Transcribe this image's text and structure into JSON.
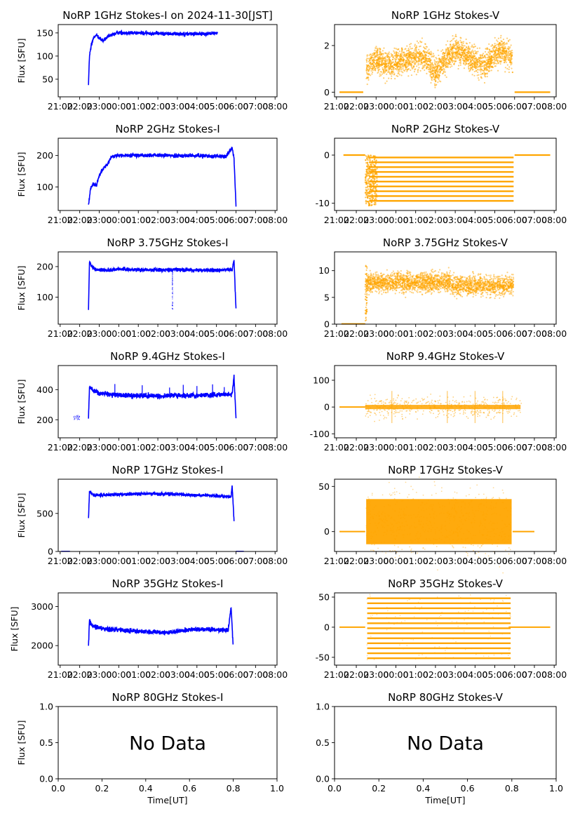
{
  "time_ticks": [
    "21:00",
    "22:00",
    "23:00",
    "00:00",
    "01:00",
    "02:00",
    "03:00",
    "04:00",
    "05:00",
    "06:00",
    "07:00",
    "08:00"
  ],
  "colors": {
    "stokes_i": "#0000ff",
    "stokes_v": "#ffa500"
  },
  "chart_data": [
    {
      "id": "p1i",
      "type": "scatter",
      "title": "NoRP 1GHz Stokes-I on 2024-11-30[JST]",
      "ylabel": "Flux [SFU]",
      "xlabel": "",
      "ylim": [
        12,
        168
      ],
      "yticks": [
        50,
        100,
        150
      ],
      "series": "I",
      "start_h": 22.45,
      "end_h": 29.05,
      "profile": [
        [
          22.45,
          40
        ],
        [
          22.5,
          100
        ],
        [
          22.6,
          125
        ],
        [
          22.75,
          143
        ],
        [
          22.9,
          145
        ],
        [
          23.0,
          138
        ],
        [
          23.2,
          133
        ],
        [
          23.5,
          143
        ],
        [
          23.8,
          148
        ],
        [
          24.0,
          151
        ],
        [
          24.5,
          150
        ],
        [
          25,
          150
        ],
        [
          25.5,
          149
        ],
        [
          26,
          149
        ],
        [
          26.5,
          148
        ],
        [
          27,
          148
        ],
        [
          27.5,
          148
        ],
        [
          28,
          148
        ],
        [
          28.5,
          148
        ],
        [
          29.0,
          150
        ]
      ],
      "noise": 2
    },
    {
      "id": "p1v",
      "type": "scatter",
      "title": "NoRP 1GHz Stokes-V",
      "ylabel": "",
      "xlabel": "",
      "ylim": [
        -0.2,
        2.9
      ],
      "yticks": [
        0,
        2
      ],
      "series": "V",
      "mode": "v1"
    },
    {
      "id": "p2i",
      "type": "scatter",
      "title": "NoRP 2GHz Stokes-I",
      "ylabel": "Flux [SFU]",
      "xlabel": "",
      "ylim": [
        25,
        255
      ],
      "yticks": [
        100,
        200
      ],
      "series": "I",
      "start_h": 22.45,
      "end_h": 30.0,
      "profile": [
        [
          22.45,
          40
        ],
        [
          22.55,
          95
        ],
        [
          22.7,
          110
        ],
        [
          22.85,
          105
        ],
        [
          23.0,
          135
        ],
        [
          23.2,
          160
        ],
        [
          23.4,
          170
        ],
        [
          23.6,
          195
        ],
        [
          23.8,
          198
        ],
        [
          24.2,
          200
        ],
        [
          25,
          201
        ],
        [
          26,
          200
        ],
        [
          27,
          200
        ],
        [
          28,
          199
        ],
        [
          29,
          198
        ],
        [
          29.5,
          197
        ],
        [
          29.8,
          225
        ],
        [
          29.9,
          190
        ],
        [
          30.0,
          40
        ]
      ],
      "noise": 3
    },
    {
      "id": "p2v",
      "type": "scatter",
      "title": "NoRP 2GHz Stokes-V",
      "ylabel": "",
      "xlabel": "",
      "ylim": [
        -11.5,
        3.5
      ],
      "yticks": [
        -10,
        0
      ],
      "series": "V",
      "mode": "v2"
    },
    {
      "id": "p3i",
      "type": "scatter",
      "title": "NoRP 3.75GHz Stokes-I",
      "ylabel": "Flux [SFU]",
      "xlabel": "",
      "ylim": [
        12,
        248
      ],
      "yticks": [
        100,
        200
      ],
      "series": "I",
      "start_h": 22.45,
      "end_h": 30.0,
      "profile": [
        [
          22.45,
          60
        ],
        [
          22.5,
          215
        ],
        [
          22.6,
          200
        ],
        [
          22.8,
          190
        ],
        [
          23.5,
          188
        ],
        [
          24.0,
          193
        ],
        [
          24.5,
          190
        ],
        [
          25,
          190
        ],
        [
          26,
          189
        ],
        [
          27,
          190
        ],
        [
          28,
          188
        ],
        [
          29,
          188
        ],
        [
          29.8,
          190
        ],
        [
          29.9,
          220
        ],
        [
          30.0,
          60
        ]
      ],
      "noise": 3,
      "dip_at": 26.75
    },
    {
      "id": "p3v",
      "type": "scatter",
      "title": "NoRP 3.75GHz Stokes-V",
      "ylabel": "",
      "xlabel": "",
      "ylim": [
        0,
        13.5
      ],
      "yticks": [
        0,
        5,
        10
      ],
      "series": "V",
      "mode": "v3"
    },
    {
      "id": "p4i",
      "type": "scatter",
      "title": "NoRP 9.4GHz Stokes-I",
      "ylabel": "Flux [SFU]",
      "xlabel": "",
      "ylim": [
        80,
        560
      ],
      "yticks": [
        200,
        400
      ],
      "series": "I",
      "start_h": 22.45,
      "end_h": 30.0,
      "profile": [
        [
          22.45,
          210
        ],
        [
          22.5,
          420
        ],
        [
          22.7,
          395
        ],
        [
          23.0,
          375
        ],
        [
          23.5,
          370
        ],
        [
          24.0,
          365
        ],
        [
          25,
          360
        ],
        [
          26,
          358
        ],
        [
          27,
          360
        ],
        [
          28,
          362
        ],
        [
          29,
          365
        ],
        [
          29.8,
          370
        ],
        [
          29.9,
          490
        ],
        [
          30.0,
          210
        ],
        [
          30.3,
          210
        ]
      ],
      "noise": 8
    },
    {
      "id": "p4v",
      "type": "scatter",
      "title": "NoRP 9.4GHz Stokes-V",
      "ylabel": "",
      "xlabel": "",
      "ylim": [
        -115,
        155
      ],
      "yticks": [
        -100,
        0,
        100
      ],
      "series": "V",
      "mode": "v4"
    },
    {
      "id": "p5i",
      "type": "scatter",
      "title": "NoRP 17GHz Stokes-I",
      "ylabel": "Flux [SFU]",
      "xlabel": "",
      "ylim": [
        0,
        950
      ],
      "yticks": [
        0,
        500
      ],
      "series": "I",
      "start_h": 22.45,
      "end_h": 29.9,
      "profile": [
        [
          22.45,
          420
        ],
        [
          22.5,
          790
        ],
        [
          22.7,
          735
        ],
        [
          23.5,
          745
        ],
        [
          24.5,
          755
        ],
        [
          25.5,
          758
        ],
        [
          26.5,
          755
        ],
        [
          27.5,
          745
        ],
        [
          28.5,
          735
        ],
        [
          29.5,
          725
        ],
        [
          29.75,
          720
        ],
        [
          29.8,
          870
        ],
        [
          29.9,
          410
        ]
      ],
      "noise": 10
    },
    {
      "id": "p5v",
      "type": "scatter",
      "title": "NoRP 17GHz Stokes-V",
      "ylabel": "",
      "xlabel": "",
      "ylim": [
        -22,
        58
      ],
      "yticks": [
        0,
        50
      ],
      "series": "V",
      "mode": "v5"
    },
    {
      "id": "p6i",
      "type": "scatter",
      "title": "NoRP 35GHz Stokes-I",
      "ylabel": "Flux [SFU]",
      "xlabel": "",
      "ylim": [
        1500,
        3350
      ],
      "yticks": [
        2000,
        3000
      ],
      "series": "I",
      "start_h": 22.45,
      "end_h": 29.85,
      "profile": [
        [
          22.45,
          2000
        ],
        [
          22.5,
          2620
        ],
        [
          22.7,
          2480
        ],
        [
          23.5,
          2420
        ],
        [
          24.5,
          2380
        ],
        [
          25.5,
          2350
        ],
        [
          26.5,
          2330
        ],
        [
          27.5,
          2400
        ],
        [
          28.5,
          2420
        ],
        [
          29.3,
          2400
        ],
        [
          29.6,
          2380
        ],
        [
          29.75,
          3000
        ],
        [
          29.85,
          2000
        ]
      ],
      "noise": 30
    },
    {
      "id": "p6v",
      "type": "scatter",
      "title": "NoRP 35GHz Stokes-V",
      "ylabel": "",
      "xlabel": "",
      "ylim": [
        -63,
        57
      ],
      "yticks": [
        -50,
        0,
        50
      ],
      "series": "V",
      "mode": "v6"
    },
    {
      "id": "p7i",
      "type": "empty",
      "title": "NoRP 80GHz Stokes-I",
      "ylabel": "Flux [SFU]",
      "xlabel": "Time[UT]",
      "ylim": [
        0,
        1
      ],
      "yticks": [
        "0.0",
        "0.5",
        "1.0"
      ],
      "xticks": [
        "0.0",
        "0.2",
        "0.4",
        "0.6",
        "0.8",
        "1.0"
      ],
      "annotation": "No Data"
    },
    {
      "id": "p7v",
      "type": "empty",
      "title": "NoRP 80GHz Stokes-V",
      "ylabel": "",
      "xlabel": "Time[UT]",
      "ylim": [
        0,
        1
      ],
      "yticks": [
        "0.0",
        "0.5",
        "1.0"
      ],
      "xticks": [
        "0.0",
        "0.2",
        "0.4",
        "0.6",
        "0.8",
        "1.0"
      ],
      "annotation": "No Data"
    }
  ]
}
